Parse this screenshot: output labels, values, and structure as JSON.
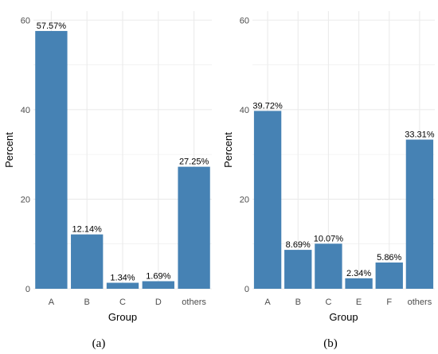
{
  "chart_data": [
    {
      "type": "bar",
      "panel_label": "(a)",
      "categories": [
        "A",
        "B",
        "C",
        "D",
        "others"
      ],
      "values": [
        57.57,
        12.14,
        1.34,
        1.69,
        27.25
      ],
      "data_labels": [
        "57.57%",
        "12.14%",
        "1.34%",
        "1.69%",
        "27.25%"
      ],
      "xlabel": "Group",
      "ylabel": "Percent",
      "ylim": [
        0,
        62
      ],
      "yticks": [
        0,
        20,
        40,
        60
      ],
      "grid": true,
      "bar_color": "#4682b4"
    },
    {
      "type": "bar",
      "panel_label": "(b)",
      "categories": [
        "A",
        "B",
        "C",
        "E",
        "F",
        "others"
      ],
      "values": [
        39.72,
        8.69,
        10.07,
        2.34,
        5.86,
        33.31
      ],
      "data_labels": [
        "39.72%",
        "8.69%",
        "10.07%",
        "2.34%",
        "5.86%",
        "33.31%"
      ],
      "xlabel": "Group",
      "ylabel": "Percent",
      "ylim": [
        0,
        62
      ],
      "yticks": [
        0,
        20,
        40,
        60
      ],
      "grid": true,
      "bar_color": "#4682b4"
    }
  ]
}
